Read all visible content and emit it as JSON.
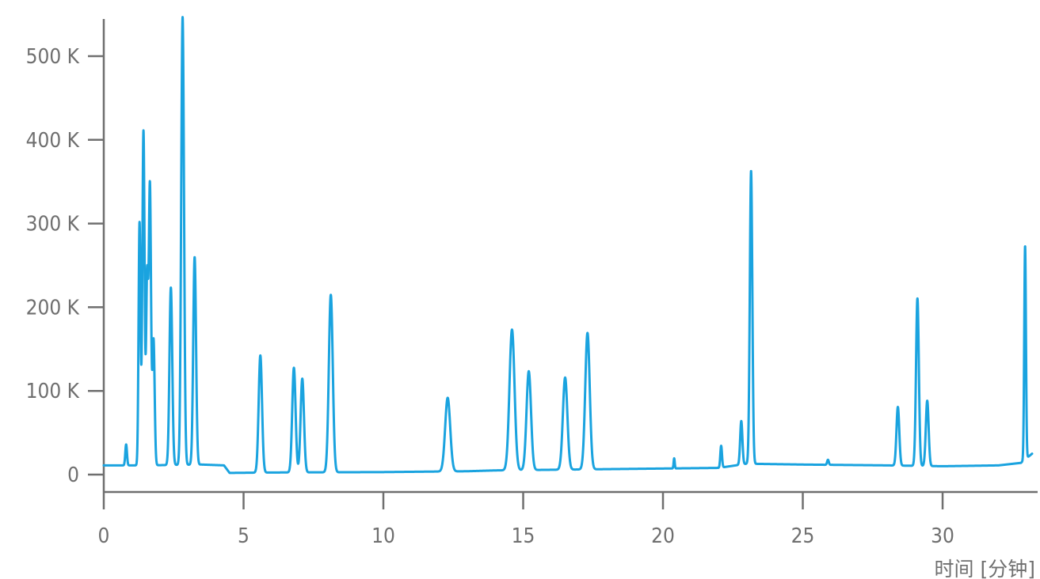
{
  "chart_data": {
    "type": "line",
    "title": "",
    "xlabel": "时间 [分钟]",
    "ylabel": "",
    "xlim": [
      0,
      33.2
    ],
    "ylim": [
      -20000,
      545000
    ],
    "x_ticks": [
      0,
      5,
      10,
      15,
      20,
      25,
      30
    ],
    "x_tick_labels": [
      "0",
      "5",
      "10",
      "15",
      "20",
      "25",
      "30"
    ],
    "y_ticks": [
      0,
      100000,
      200000,
      300000,
      400000,
      500000
    ],
    "y_tick_labels": [
      "0",
      "100 K",
      "200 K",
      "300 K",
      "400 K",
      "500 K"
    ],
    "grid": false,
    "color": "#1aa3df",
    "baseline": [
      [
        0,
        11000
      ],
      [
        1.5,
        11000
      ],
      [
        2.5,
        11500
      ],
      [
        3.5,
        12000
      ],
      [
        4.3,
        11000
      ],
      [
        4.5,
        2000
      ],
      [
        6,
        2500
      ],
      [
        10,
        3000
      ],
      [
        13,
        4000
      ],
      [
        14,
        5000
      ],
      [
        18,
        6500
      ],
      [
        22,
        8000
      ],
      [
        23,
        13000
      ],
      [
        25,
        12000
      ],
      [
        28,
        11000
      ],
      [
        30,
        10000
      ],
      [
        32,
        11000
      ],
      [
        32.8,
        14000
      ],
      [
        33.2,
        25000
      ]
    ],
    "peaks": [
      {
        "rt": 0.8,
        "height": 25000,
        "width": 0.03
      },
      {
        "rt": 1.28,
        "height": 290000,
        "width": 0.035
      },
      {
        "rt": 1.42,
        "height": 400000,
        "width": 0.04
      },
      {
        "rt": 1.55,
        "height": 220000,
        "width": 0.035
      },
      {
        "rt": 1.65,
        "height": 335000,
        "width": 0.04
      },
      {
        "rt": 1.78,
        "height": 150000,
        "width": 0.04
      },
      {
        "rt": 2.4,
        "height": 212000,
        "width": 0.05
      },
      {
        "rt": 2.82,
        "height": 535000,
        "width": 0.05
      },
      {
        "rt": 3.25,
        "height": 248000,
        "width": 0.05
      },
      {
        "rt": 5.6,
        "height": 140000,
        "width": 0.06
      },
      {
        "rt": 6.8,
        "height": 125000,
        "width": 0.06
      },
      {
        "rt": 7.1,
        "height": 112000,
        "width": 0.06
      },
      {
        "rt": 8.12,
        "height": 212000,
        "width": 0.07
      },
      {
        "rt": 12.3,
        "height": 88000,
        "width": 0.09
      },
      {
        "rt": 14.6,
        "height": 168000,
        "width": 0.09
      },
      {
        "rt": 15.2,
        "height": 118000,
        "width": 0.08
      },
      {
        "rt": 16.5,
        "height": 110000,
        "width": 0.08
      },
      {
        "rt": 17.3,
        "height": 163000,
        "width": 0.08
      },
      {
        "rt": 20.4,
        "height": 12000,
        "width": 0.02
      },
      {
        "rt": 22.08,
        "height": 26000,
        "width": 0.03
      },
      {
        "rt": 22.8,
        "height": 52000,
        "width": 0.04
      },
      {
        "rt": 23.15,
        "height": 350000,
        "width": 0.045
      },
      {
        "rt": 25.9,
        "height": 6000,
        "width": 0.03
      },
      {
        "rt": 28.4,
        "height": 70000,
        "width": 0.05
      },
      {
        "rt": 29.1,
        "height": 200000,
        "width": 0.05
      },
      {
        "rt": 29.45,
        "height": 78000,
        "width": 0.05
      },
      {
        "rt": 32.95,
        "height": 255000,
        "width": 0.03
      }
    ]
  }
}
